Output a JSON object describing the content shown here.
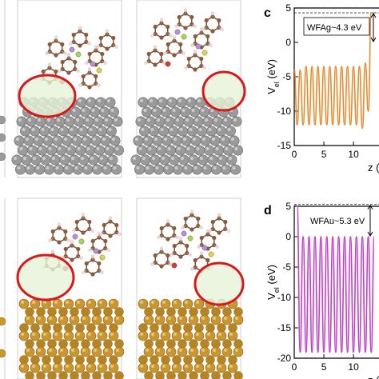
{
  "panels": {
    "c": {
      "letter": "c",
      "annotation_html": "WF<tspan baseline-shift='sub' font-size='8'>Ag</tspan>~4.3 eV",
      "annotation": "WFAg~4.3 eV",
      "color": "#e8892b"
    },
    "d": {
      "letter": "d",
      "annotation": "WFAu~5.3 eV",
      "color": "#c23fc8"
    }
  },
  "substrates": {
    "silver_color": "#9a9a9a",
    "gold_color": "#c9962f",
    "highlight_circle_color": "#d7191c",
    "highlight_fill": "#e6f2d8"
  },
  "chart_data": [
    {
      "type": "line",
      "panel": "c",
      "ylabel": "V",
      "ylabel_sub": "el",
      "ylabel_unit": " (eV)",
      "xlabel": "z (",
      "y_ticks": [
        "5",
        "0",
        "-5",
        "-10",
        "-15"
      ],
      "x_ticks": [
        "0",
        "5",
        "10"
      ],
      "ylim": [
        -15,
        5
      ],
      "xlim": [
        0,
        13.5
      ],
      "vacuum_level": 4.3,
      "series": [
        {
          "color": "#e8892b",
          "x": [
            0,
            0.5,
            1,
            1.5,
            2,
            2.5,
            3,
            3.5,
            4,
            4.5,
            5,
            5.5,
            6,
            6.5,
            7,
            7.5,
            8,
            8.5,
            9,
            9.5,
            10,
            10.5,
            11,
            11.5,
            12,
            12.5,
            13,
            13.5
          ],
          "y": [
            -4,
            -12,
            -4,
            -12,
            -3.5,
            -12,
            -3.5,
            -12,
            -3.5,
            -12,
            -3.5,
            -12,
            -3.5,
            -12,
            -3.5,
            -12,
            -3.5,
            -12,
            -3.5,
            -12,
            -3.5,
            -12,
            -3.5,
            -12.5,
            -3,
            -10,
            4.3,
            4.3
          ]
        }
      ]
    },
    {
      "type": "line",
      "panel": "d",
      "ylabel": "V",
      "ylabel_sub": "el",
      "ylabel_unit": " (eV)",
      "xlabel": "z (",
      "y_ticks": [
        "5",
        "0",
        "-5",
        "-10",
        "-15",
        "-20"
      ],
      "x_ticks": [
        "0",
        "5",
        "10"
      ],
      "ylim": [
        -20,
        5
      ],
      "xlim": [
        0,
        13.5
      ],
      "vacuum_level": 5.3,
      "series": [
        {
          "color": "#c23fc8",
          "x": [
            0,
            0.5,
            1,
            1.5,
            2,
            2.5,
            3,
            3.5,
            4,
            4.5,
            5,
            5.5,
            6,
            6.5,
            7,
            7.5,
            8,
            8.5,
            9,
            9.5,
            10,
            10.5,
            11,
            11.5,
            12,
            12.5,
            13,
            13.5
          ],
          "y": [
            5.3,
            5,
            -19,
            0,
            -19,
            0,
            -19,
            0,
            -19,
            0,
            -19,
            0,
            -19,
            0,
            -19,
            0,
            -19,
            0,
            -19,
            0,
            -19,
            0,
            -19,
            0,
            -19,
            0,
            -19,
            0
          ]
        }
      ]
    }
  ]
}
